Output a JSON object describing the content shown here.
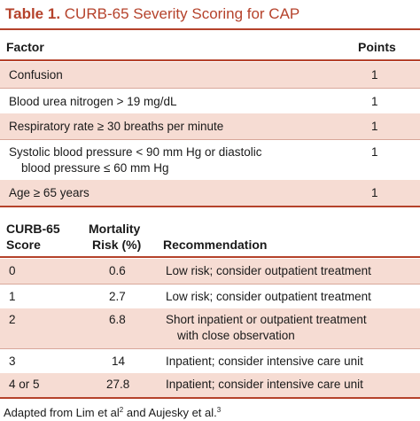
{
  "title": {
    "label": "Table 1.",
    "text": "CURB-65 Severity Scoring for CAP"
  },
  "table1": {
    "headers": {
      "factor": "Factor",
      "points": "Points"
    },
    "rows": [
      {
        "factor": [
          "Confusion"
        ],
        "points": "1"
      },
      {
        "factor": [
          "Blood urea nitrogen > 19 mg/dL"
        ],
        "points": "1"
      },
      {
        "factor": [
          "Respiratory rate ≥ 30 breaths per minute"
        ],
        "points": "1"
      },
      {
        "factor": [
          "Systolic blood pressure < 90 mm Hg or diastolic",
          "blood pressure ≤ 60 mm Hg"
        ],
        "points": "1"
      },
      {
        "factor": [
          "Age ≥ 65 years"
        ],
        "points": "1"
      }
    ]
  },
  "table2": {
    "headers": {
      "score": [
        "CURB-65",
        "Score"
      ],
      "mortality": [
        "Mortality",
        "Risk (%)"
      ],
      "recommendation": "Recommendation"
    },
    "rows": [
      {
        "score": "0",
        "risk": "0.6",
        "rec": [
          "Low risk; consider outpatient treatment"
        ]
      },
      {
        "score": "1",
        "risk": "2.7",
        "rec": [
          "Low risk; consider outpatient treatment"
        ]
      },
      {
        "score": "2",
        "risk": "6.8",
        "rec": [
          "Short inpatient or outpatient treatment",
          "with close observation"
        ]
      },
      {
        "score": "3",
        "risk": "14",
        "rec": [
          "Inpatient; consider intensive care unit"
        ]
      },
      {
        "score": "4 or 5",
        "risk": "27.8",
        "rec": [
          "Inpatient; consider intensive care unit"
        ]
      }
    ]
  },
  "footer": {
    "prefix": "Adapted from Lim et al",
    "ref1": "2",
    "middle": " and Aujesky et al.",
    "ref2": "3"
  },
  "colors": {
    "accent": "#b5422b",
    "shade": "#f6dcd3",
    "rowline": "#d8a79a"
  }
}
